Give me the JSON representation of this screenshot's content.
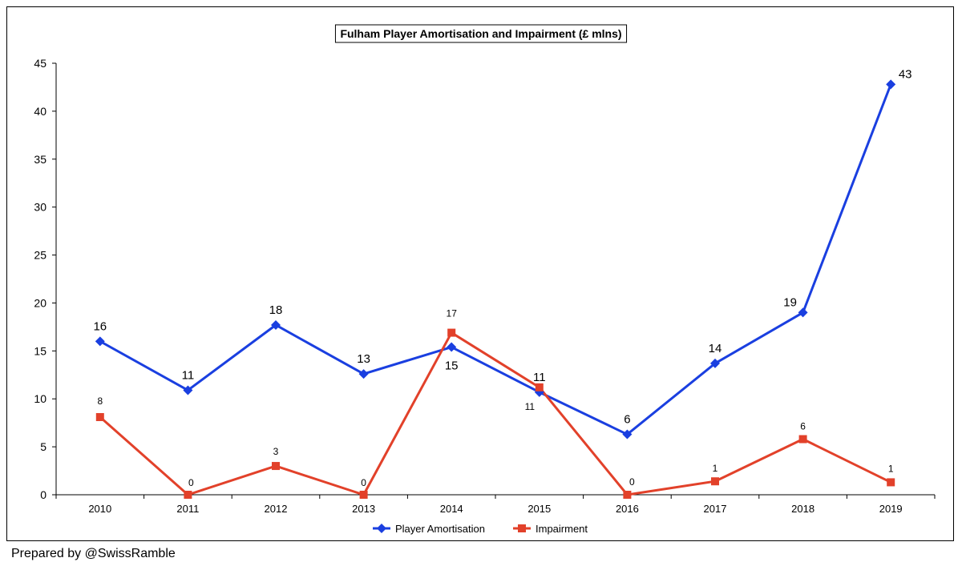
{
  "chart_data": {
    "type": "line",
    "title": "Fulham Player Amortisation and Impairment (£ mlns)",
    "xlabel": "",
    "ylabel": "",
    "categories": [
      "2010",
      "2011",
      "2012",
      "2013",
      "2014",
      "2015",
      "2016",
      "2017",
      "2018",
      "2019"
    ],
    "ylim": [
      0,
      45
    ],
    "yticks": [
      0,
      5,
      10,
      15,
      20,
      25,
      30,
      35,
      40,
      45
    ],
    "grid": false,
    "legend_position": "bottom",
    "series": [
      {
        "name": "Player Amortisation",
        "color": "#1a3fe0",
        "marker": "diamond",
        "values": [
          16.0,
          10.9,
          17.7,
          12.6,
          15.4,
          10.7,
          6.3,
          13.7,
          19.0,
          42.8
        ],
        "labels": [
          "16",
          "11",
          "18",
          "13",
          "15",
          "11",
          "6",
          "14",
          "19",
          "43"
        ]
      },
      {
        "name": "Impairment",
        "color": "#e2412a",
        "marker": "square",
        "values": [
          8.1,
          0.0,
          3.0,
          0.0,
          16.9,
          11.2,
          0.0,
          1.4,
          5.8,
          1.3
        ],
        "labels": [
          "8",
          "0",
          "3",
          "0",
          "17",
          "11",
          "0",
          "1",
          "6",
          "1"
        ]
      }
    ]
  },
  "footer": {
    "credit": "Prepared by @SwissRamble"
  }
}
